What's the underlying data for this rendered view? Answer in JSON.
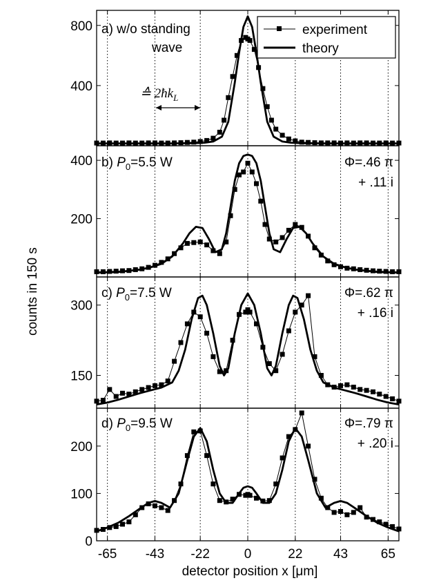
{
  "ylabel": "counts in 150 s",
  "xlabel": "detector position x [μm]",
  "legend": {
    "placement": "top-right",
    "items": [
      "experiment",
      "theory"
    ]
  },
  "chart_data": [
    {
      "type": "line",
      "panel": "a",
      "label": "a) w/o standing wave",
      "label_line1": "a) w/o standing",
      "label_line2": "wave",
      "spacing_annotation": "≙ 2ħk",
      "spacing_subscript": "L",
      "xlim": [
        -70,
        70
      ],
      "ylim": [
        0,
        900
      ],
      "yticks": [
        400,
        800
      ],
      "xtick_marks": [
        -65,
        -43,
        -22,
        0,
        22,
        43,
        65
      ],
      "grid_x": true,
      "series": [
        {
          "name": "experiment",
          "x": [
            -70,
            -67,
            -64,
            -61,
            -58,
            -55,
            -52,
            -49,
            -46,
            -43,
            -40,
            -37,
            -34,
            -31,
            -28,
            -25,
            -22,
            -19,
            -16,
            -13,
            -11,
            -9,
            -7,
            -5,
            -3,
            -1,
            0,
            1,
            3,
            5,
            7,
            9,
            11,
            13,
            16,
            19,
            22,
            25,
            28,
            31,
            34,
            37,
            40,
            43,
            46,
            49,
            52,
            55,
            58,
            61,
            64,
            67,
            70
          ],
          "y": [
            18,
            18,
            19,
            18,
            18,
            19,
            18,
            18,
            19,
            19,
            18,
            18,
            19,
            20,
            22,
            24,
            28,
            35,
            50,
            90,
            170,
            320,
            460,
            600,
            700,
            720,
            710,
            700,
            640,
            520,
            380,
            260,
            170,
            110,
            70,
            45,
            32,
            24,
            22,
            20,
            19,
            19,
            19,
            18,
            19,
            18,
            19,
            19,
            18,
            18,
            19,
            18,
            18
          ]
        },
        {
          "name": "theory",
          "x": [
            -70,
            -65,
            -60,
            -55,
            -50,
            -45,
            -40,
            -35,
            -30,
            -25,
            -20,
            -16,
            -12,
            -9,
            -6,
            -4,
            -2,
            0,
            2,
            4,
            6,
            9,
            12,
            16,
            20,
            25,
            30,
            35,
            40,
            45,
            50,
            55,
            60,
            65,
            70
          ],
          "y": [
            15,
            15,
            15,
            15,
            15,
            15,
            15,
            15,
            16,
            17,
            20,
            28,
            60,
            160,
            420,
            620,
            790,
            860,
            790,
            620,
            420,
            160,
            60,
            28,
            20,
            17,
            16,
            15,
            15,
            15,
            15,
            15,
            15,
            15,
            15
          ]
        }
      ]
    },
    {
      "type": "line",
      "panel": "b",
      "label": "b) P0=5.5 W",
      "label_prefix": "b) ",
      "label_var": "P",
      "label_sub": "0",
      "label_val": "=5.5 W",
      "phase_line1": "Φ=.46 π",
      "phase_line2": "+ .11 i",
      "xlim": [
        -70,
        70
      ],
      "ylim": [
        0,
        450
      ],
      "yticks": [
        200,
        400
      ],
      "grid_x": true,
      "series": [
        {
          "name": "experiment",
          "x": [
            -70,
            -67,
            -64,
            -61,
            -58,
            -55,
            -52,
            -49,
            -46,
            -43,
            -40,
            -37,
            -34,
            -31,
            -28,
            -25,
            -22,
            -19,
            -16,
            -13,
            -10,
            -8,
            -6,
            -4,
            -2,
            0,
            2,
            4,
            6,
            8,
            10,
            13,
            16,
            19,
            22,
            25,
            28,
            31,
            34,
            37,
            40,
            43,
            46,
            49,
            52,
            55,
            58,
            61,
            64,
            67,
            70
          ],
          "y": [
            18,
            18,
            19,
            20,
            21,
            22,
            25,
            28,
            33,
            40,
            50,
            62,
            80,
            100,
            115,
            118,
            120,
            110,
            90,
            80,
            120,
            210,
            300,
            350,
            360,
            390,
            360,
            320,
            260,
            180,
            130,
            120,
            135,
            160,
            180,
            170,
            140,
            100,
            75,
            55,
            42,
            35,
            30,
            28,
            25,
            23,
            21,
            20,
            19,
            18,
            18
          ]
        },
        {
          "name": "theory",
          "x": [
            -70,
            -60,
            -50,
            -45,
            -40,
            -35,
            -30,
            -27,
            -24,
            -21,
            -18,
            -15,
            -12,
            -10,
            -8,
            -6,
            -4,
            -2,
            0,
            2,
            4,
            6,
            8,
            10,
            12,
            15,
            18,
            21,
            24,
            27,
            30,
            35,
            40,
            45,
            50,
            60,
            70
          ],
          "y": [
            15,
            17,
            25,
            33,
            45,
            70,
            115,
            150,
            172,
            168,
            130,
            85,
            95,
            150,
            240,
            330,
            390,
            415,
            420,
            415,
            390,
            330,
            240,
            150,
            95,
            85,
            130,
            168,
            172,
            150,
            115,
            70,
            45,
            33,
            25,
            17,
            15
          ]
        }
      ]
    },
    {
      "type": "line",
      "panel": "c",
      "label": "c) P0=7.5 W",
      "label_prefix": "c) ",
      "label_var": "P",
      "label_sub": "0",
      "label_val": "=7.5 W",
      "phase_line1": "Φ=.62 π",
      "phase_line2": "+ .16 i",
      "xlim": [
        -70,
        70
      ],
      "ylim": [
        80,
        360
      ],
      "yticks": [
        150,
        300
      ],
      "grid_x": true,
      "series": [
        {
          "name": "experiment",
          "x": [
            -70,
            -67,
            -64,
            -61,
            -58,
            -55,
            -52,
            -49,
            -46,
            -43,
            -40,
            -37,
            -34,
            -31,
            -28,
            -25,
            -22,
            -19,
            -16,
            -13,
            -10,
            -7,
            -4,
            -1,
            0,
            1,
            4,
            7,
            10,
            13,
            16,
            19,
            22,
            25,
            28,
            31,
            34,
            37,
            40,
            43,
            46,
            49,
            52,
            55,
            58,
            61,
            64,
            67,
            70
          ],
          "y": [
            95,
            97,
            120,
            105,
            112,
            110,
            115,
            120,
            124,
            128,
            130,
            138,
            180,
            220,
            260,
            285,
            275,
            240,
            190,
            158,
            160,
            225,
            280,
            285,
            290,
            285,
            260,
            210,
            175,
            160,
            195,
            245,
            285,
            300,
            320,
            190,
            150,
            130,
            125,
            128,
            130,
            125,
            120,
            118,
            115,
            110,
            105,
            100,
            95
          ]
        },
        {
          "name": "theory",
          "x": [
            -70,
            -65,
            -60,
            -55,
            -50,
            -45,
            -40,
            -35,
            -32,
            -29,
            -26,
            -23,
            -21,
            -19,
            -16,
            -13,
            -11,
            -9,
            -6,
            -3,
            0,
            3,
            6,
            9,
            11,
            13,
            16,
            19,
            21,
            23,
            26,
            29,
            32,
            35,
            40,
            45,
            50,
            55,
            60,
            65,
            70
          ],
          "y": [
            88,
            92,
            98,
            105,
            112,
            118,
            124,
            135,
            160,
            205,
            270,
            315,
            320,
            300,
            240,
            170,
            150,
            165,
            240,
            300,
            325,
            300,
            240,
            165,
            150,
            170,
            240,
            300,
            320,
            315,
            270,
            205,
            160,
            135,
            124,
            118,
            112,
            105,
            98,
            92,
            88
          ]
        }
      ]
    },
    {
      "type": "line",
      "panel": "d",
      "label": "d) P0=9.5 W",
      "label_prefix": "d) ",
      "label_var": "P",
      "label_sub": "0",
      "label_val": "=9.5 W",
      "phase_line1": "Φ=.79 π",
      "phase_line2": "+ .20 i",
      "xlim": [
        -70,
        70
      ],
      "ylim": [
        0,
        280
      ],
      "yticks": [
        0,
        100,
        200
      ],
      "grid_x": true,
      "series": [
        {
          "name": "experiment",
          "x": [
            -70,
            -67,
            -64,
            -61,
            -58,
            -55,
            -52,
            -49,
            -46,
            -43,
            -40,
            -37,
            -34,
            -31,
            -28,
            -25,
            -22,
            -19,
            -16,
            -13,
            -10,
            -7,
            -4,
            -1,
            0,
            1,
            4,
            7,
            10,
            13,
            16,
            19,
            22,
            25,
            28,
            31,
            34,
            37,
            40,
            43,
            46,
            49,
            52,
            55,
            58,
            61,
            64,
            67,
            70
          ],
          "y": [
            22,
            24,
            28,
            30,
            35,
            40,
            55,
            70,
            78,
            74,
            70,
            64,
            85,
            120,
            180,
            230,
            232,
            180,
            120,
            85,
            82,
            88,
            98,
            96,
            98,
            96,
            90,
            84,
            85,
            120,
            175,
            220,
            235,
            270,
            200,
            130,
            90,
            70,
            60,
            62,
            55,
            60,
            70,
            50,
            45,
            40,
            35,
            30,
            25
          ]
        },
        {
          "name": "theory",
          "x": [
            -70,
            -65,
            -60,
            -55,
            -50,
            -46,
            -43,
            -40,
            -36,
            -32,
            -28,
            -25,
            -22,
            -19,
            -16,
            -13,
            -10,
            -7,
            -4,
            -2,
            0,
            2,
            4,
            7,
            10,
            13,
            16,
            19,
            22,
            25,
            28,
            32,
            36,
            40,
            43,
            46,
            50,
            55,
            60,
            65,
            70
          ],
          "y": [
            20,
            28,
            38,
            52,
            68,
            80,
            84,
            80,
            70,
            100,
            170,
            220,
            238,
            210,
            150,
            100,
            80,
            80,
            100,
            112,
            115,
            112,
            100,
            80,
            80,
            100,
            150,
            210,
            238,
            220,
            170,
            100,
            70,
            80,
            84,
            80,
            68,
            52,
            38,
            28,
            20
          ]
        }
      ]
    }
  ],
  "xtick_labels": [
    "-65",
    "-43",
    "-22",
    "0",
    "22",
    "43",
    "65"
  ],
  "xtick_values": [
    -65,
    -43,
    -22,
    0,
    22,
    43,
    65
  ]
}
